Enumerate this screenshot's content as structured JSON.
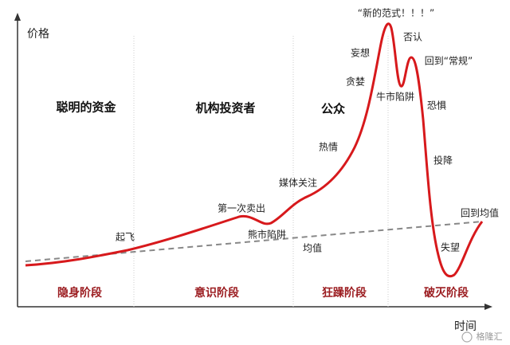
{
  "axes": {
    "y_label": "价格",
    "x_label": "时间"
  },
  "audiences": [
    "聪明的资金",
    "机构投资者",
    "公众"
  ],
  "phases": [
    "隐身阶段",
    "意识阶段",
    "狂躁阶段",
    "破灭阶段"
  ],
  "annotations": [
    "起飞",
    "第一次卖出",
    "熊市陷阱",
    "均值",
    "媒体关注",
    "热情",
    "贪婪",
    "妄想",
    "“新的范式！！！”",
    "否认",
    "回到“常规”",
    "牛市陷阱",
    "恐惧",
    "投降",
    "失望",
    "回到均值"
  ],
  "watermark": "格隆汇"
}
